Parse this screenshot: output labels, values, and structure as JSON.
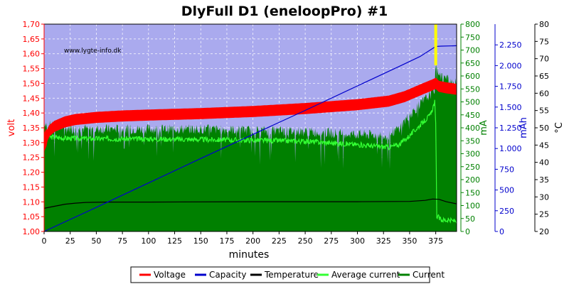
{
  "chart_data": {
    "type": "line",
    "title": "DlyFull D1 (eneloopPro) #1",
    "watermark": "www.lygte-info.dk",
    "xlabel": "minutes",
    "xlim": [
      0,
      395
    ],
    "xticks": [
      0,
      25,
      50,
      75,
      100,
      125,
      150,
      175,
      200,
      225,
      250,
      275,
      300,
      325,
      350,
      375
    ],
    "grid": true,
    "background_color": "#aaaaee",
    "axes": {
      "volt": {
        "label": "volt",
        "color": "#ff0000",
        "range": [
          1.0,
          1.7
        ],
        "side": "left",
        "ticks": [
          "1,00",
          "1,05",
          "1,10",
          "1,15",
          "1,20",
          "1,25",
          "1,30",
          "1,35",
          "1,40",
          "1,45",
          "1,50",
          "1,55",
          "1,60",
          "1,65",
          "1,70"
        ]
      },
      "mA": {
        "label": "mA",
        "color": "#008000",
        "range": [
          0,
          800
        ],
        "side": "right",
        "ticks": [
          "0",
          "50",
          "100",
          "150",
          "200",
          "250",
          "300",
          "350",
          "400",
          "450",
          "500",
          "550",
          "600",
          "650",
          "700",
          "750",
          "800"
        ]
      },
      "mAh": {
        "label": "mAh",
        "color": "#0000cc",
        "range": [
          0,
          2500
        ],
        "side": "right",
        "ticks": [
          "0",
          "250",
          "500",
          "750",
          "1.000",
          "1.250",
          "1.500",
          "1.750",
          "2.000",
          "2.250"
        ]
      },
      "celsius": {
        "label": "°C",
        "color": "#000000",
        "range": [
          20,
          80
        ],
        "side": "right",
        "ticks": [
          "20",
          "25",
          "30",
          "35",
          "40",
          "45",
          "50",
          "55",
          "60",
          "65",
          "70",
          "75",
          "80"
        ]
      }
    },
    "marker": {
      "x": 375,
      "color": "#ffff00"
    },
    "series": [
      {
        "name": "Voltage",
        "axis": "volt",
        "color": "#ff0000",
        "band_width": 0.035,
        "x": [
          0,
          5,
          10,
          20,
          30,
          50,
          75,
          100,
          150,
          200,
          250,
          300,
          330,
          345,
          355,
          365,
          372,
          375,
          378,
          385,
          395
        ],
        "y": [
          1.3,
          1.34,
          1.355,
          1.37,
          1.378,
          1.385,
          1.39,
          1.393,
          1.398,
          1.405,
          1.415,
          1.428,
          1.44,
          1.455,
          1.47,
          1.485,
          1.495,
          1.5,
          1.49,
          1.485,
          1.48
        ]
      },
      {
        "name": "Capacity",
        "axis": "mAh",
        "color": "#0000cc",
        "x": [
          0,
          50,
          100,
          150,
          200,
          250,
          300,
          340,
          360,
          375,
          380,
          395
        ],
        "y": [
          0,
          290,
          585,
          880,
          1170,
          1460,
          1755,
          1990,
          2110,
          2230,
          2235,
          2240
        ]
      },
      {
        "name": "Temperature",
        "axis": "celsius",
        "color": "#000000",
        "x": [
          0,
          10,
          20,
          30,
          40,
          60,
          100,
          200,
          300,
          350,
          365,
          372,
          378,
          385,
          395
        ],
        "y": [
          26.7,
          27.3,
          27.9,
          28.2,
          28.4,
          28.5,
          28.5,
          28.6,
          28.6,
          28.7,
          29.0,
          29.4,
          29.3,
          28.6,
          28.0
        ]
      },
      {
        "name": "Average current",
        "axis": "mA",
        "color": "#33ff33",
        "band_width": 20,
        "x": [
          0,
          5,
          20,
          50,
          100,
          150,
          200,
          250,
          300,
          330,
          340,
          350,
          360,
          370,
          374,
          375,
          376,
          380,
          395
        ],
        "y": [
          375,
          365,
          360,
          358,
          357,
          355,
          352,
          348,
          335,
          325,
          335,
          370,
          410,
          450,
          500,
          410,
          60,
          45,
          40
        ]
      },
      {
        "name": "Current",
        "axis": "mA",
        "color": "#008000",
        "x": [
          0,
          5,
          20,
          50,
          100,
          150,
          200,
          250,
          300,
          330,
          340,
          350,
          360,
          370,
          374,
          375,
          380,
          395
        ],
        "y": [
          420,
          410,
          400,
          395,
          395,
          395,
          390,
          385,
          375,
          370,
          400,
          450,
          490,
          530,
          550,
          640,
          600,
          570
        ]
      }
    ],
    "legend": {
      "placement": "bottom",
      "entries": [
        "Voltage",
        "Capacity",
        "Temperature",
        "Average current",
        "Current"
      ]
    }
  }
}
